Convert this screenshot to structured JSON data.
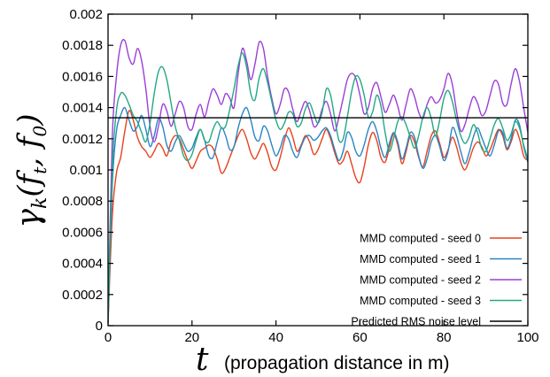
{
  "chart_data": {
    "type": "line",
    "xlabel_symbol": "t",
    "xlabel_text": "(propagation distance in m)",
    "ylabel_symbol": "γ",
    "ylabel_subscript": "k",
    "ylabel_args": "(f",
    "ylabel_arg1_sub": "t",
    "ylabel_sep": ", f",
    "ylabel_arg2_sub": "0",
    "ylabel_close": ")",
    "xlim": [
      0,
      100
    ],
    "ylim": [
      0,
      0.002
    ],
    "xticks": [
      0,
      20,
      40,
      60,
      80,
      100
    ],
    "xtick_labels": [
      "0",
      "20",
      "40",
      "60",
      "80",
      "100"
    ],
    "yticks": [
      0,
      0.0002,
      0.0004,
      0.0006,
      0.0008,
      0.001,
      0.0012,
      0.0014,
      0.0016,
      0.0018,
      0.002
    ],
    "ytick_labels": [
      "0",
      "0.0002",
      "0.0004",
      "0.0006",
      "0.0008",
      "0.001",
      "0.0012",
      "0.0014",
      "0.0016",
      "0.0018",
      "0.002"
    ],
    "legend_position": "lower-right",
    "series": [
      {
        "name": "MMD computed - seed 0",
        "color": "#e8401c",
        "x": [
          0,
          1,
          2,
          3,
          4,
          5,
          6,
          7,
          8,
          9,
          10,
          11,
          12,
          13,
          14,
          15,
          16,
          17,
          18,
          19,
          20,
          21,
          22,
          23,
          24,
          25,
          26,
          27,
          28,
          29,
          30,
          31,
          32,
          33,
          34,
          35,
          36,
          37,
          38,
          39,
          40,
          41,
          42,
          43,
          44,
          45,
          46,
          47,
          48,
          49,
          50,
          51,
          52,
          53,
          54,
          55,
          56,
          57,
          58,
          59,
          60,
          61,
          62,
          63,
          64,
          65,
          66,
          67,
          68,
          69,
          70,
          71,
          72,
          73,
          74,
          75,
          76,
          77,
          78,
          79,
          80,
          81,
          82,
          83,
          84,
          85,
          86,
          87,
          88,
          89,
          90,
          91,
          92,
          93,
          94,
          95,
          96,
          97,
          98,
          99,
          100
        ],
        "y": [
          2e-05,
          0.0007,
          0.00098,
          0.00108,
          0.00125,
          0.00138,
          0.00132,
          0.00121,
          0.00115,
          0.00112,
          0.00108,
          0.00112,
          0.00117,
          0.00114,
          0.00109,
          0.00118,
          0.00122,
          0.0012,
          0.00113,
          0.00106,
          0.00101,
          0.00106,
          0.00112,
          0.00114,
          0.00116,
          0.00114,
          0.00107,
          0.00098,
          0.00101,
          0.00108,
          0.00115,
          0.00122,
          0.00126,
          0.0012,
          0.00111,
          0.00107,
          0.00112,
          0.00117,
          0.00111,
          0.00102,
          0.001,
          0.00108,
          0.00119,
          0.00127,
          0.00121,
          0.00112,
          0.00116,
          0.00122,
          0.00118,
          0.0011,
          0.00113,
          0.0012,
          0.00126,
          0.0012,
          0.00111,
          0.00104,
          0.00106,
          0.00112,
          0.00104,
          0.00095,
          0.00092,
          0.00102,
          0.00116,
          0.00124,
          0.00119,
          0.00108,
          0.00105,
          0.00114,
          0.00123,
          0.00116,
          0.00104,
          0.00112,
          0.00122,
          0.00118,
          0.00108,
          0.00102,
          0.00112,
          0.00122,
          0.00125,
          0.00117,
          0.00108,
          0.00113,
          0.00121,
          0.00115,
          0.00105,
          0.001,
          0.00106,
          0.00114,
          0.00118,
          0.00115,
          0.00109,
          0.00113,
          0.0012,
          0.00126,
          0.00122,
          0.00113,
          0.00118,
          0.00126,
          0.0012,
          0.00109,
          0.00106
        ]
      },
      {
        "name": "MMD computed - seed 1",
        "color": "#2a84c4",
        "x": [
          0,
          1,
          2,
          3,
          4,
          5,
          6,
          7,
          8,
          9,
          10,
          11,
          12,
          13,
          14,
          15,
          16,
          17,
          18,
          19,
          20,
          21,
          22,
          23,
          24,
          25,
          26,
          27,
          28,
          29,
          30,
          31,
          32,
          33,
          34,
          35,
          36,
          37,
          38,
          39,
          40,
          41,
          42,
          43,
          44,
          45,
          46,
          47,
          48,
          49,
          50,
          51,
          52,
          53,
          54,
          55,
          56,
          57,
          58,
          59,
          60,
          61,
          62,
          63,
          64,
          65,
          66,
          67,
          68,
          69,
          70,
          71,
          72,
          73,
          74,
          75,
          76,
          77,
          78,
          79,
          80,
          81,
          82,
          83,
          84,
          85,
          86,
          87,
          88,
          89,
          90,
          91,
          92,
          93,
          94,
          95,
          96,
          97,
          98,
          99,
          100
        ],
        "y": [
          2e-05,
          0.0009,
          0.00125,
          0.00135,
          0.0014,
          0.00132,
          0.00125,
          0.00128,
          0.00135,
          0.00126,
          0.00115,
          0.00122,
          0.00133,
          0.00128,
          0.00116,
          0.00112,
          0.00118,
          0.00122,
          0.00117,
          0.00112,
          0.00114,
          0.00121,
          0.00126,
          0.00119,
          0.00109,
          0.00108,
          0.00118,
          0.00127,
          0.00122,
          0.00113,
          0.00115,
          0.00127,
          0.00136,
          0.0014,
          0.00132,
          0.00121,
          0.00119,
          0.00128,
          0.00125,
          0.00116,
          0.00109,
          0.00114,
          0.00122,
          0.0012,
          0.00112,
          0.00108,
          0.00115,
          0.00121,
          0.00122,
          0.00119,
          0.00121,
          0.00125,
          0.00127,
          0.00122,
          0.00113,
          0.00106,
          0.00112,
          0.00124,
          0.00121,
          0.00112,
          0.00109,
          0.00116,
          0.00126,
          0.00131,
          0.00125,
          0.00114,
          0.00108,
          0.00117,
          0.00124,
          0.00118,
          0.00107,
          0.00114,
          0.00124,
          0.00121,
          0.00109,
          0.00101,
          0.00107,
          0.00118,
          0.00122,
          0.00115,
          0.00106,
          0.00112,
          0.00127,
          0.00122,
          0.00112,
          0.00104,
          0.00111,
          0.00121,
          0.00127,
          0.00121,
          0.00114,
          0.00109,
          0.00116,
          0.00125,
          0.00124,
          0.00114,
          0.0012,
          0.00132,
          0.00129,
          0.00115,
          0.00105
        ]
      },
      {
        "name": "MMD computed - seed 2",
        "color": "#9b3fd6",
        "x": [
          0,
          1,
          2,
          3,
          4,
          5,
          6,
          7,
          8,
          9,
          10,
          11,
          12,
          13,
          14,
          15,
          16,
          17,
          18,
          19,
          20,
          21,
          22,
          23,
          24,
          25,
          26,
          27,
          28,
          29,
          30,
          31,
          32,
          33,
          34,
          35,
          36,
          37,
          38,
          39,
          40,
          41,
          42,
          43,
          44,
          45,
          46,
          47,
          48,
          49,
          50,
          51,
          52,
          53,
          54,
          55,
          56,
          57,
          58,
          59,
          60,
          61,
          62,
          63,
          64,
          65,
          66,
          67,
          68,
          69,
          70,
          71,
          72,
          73,
          74,
          75,
          76,
          77,
          78,
          79,
          80,
          81,
          82,
          83,
          84,
          85,
          86,
          87,
          88,
          89,
          90,
          91,
          92,
          93,
          94,
          95,
          96,
          97,
          98,
          99,
          100
        ],
        "y": [
          2e-05,
          0.0012,
          0.0016,
          0.0018,
          0.00183,
          0.00172,
          0.00168,
          0.00178,
          0.0017,
          0.00152,
          0.00128,
          0.00118,
          0.00128,
          0.00142,
          0.00138,
          0.00128,
          0.00136,
          0.00144,
          0.0014,
          0.00128,
          0.00126,
          0.00136,
          0.00142,
          0.00134,
          0.00144,
          0.00152,
          0.00148,
          0.00142,
          0.00149,
          0.00146,
          0.0014,
          0.00162,
          0.00178,
          0.0017,
          0.00158,
          0.00168,
          0.00182,
          0.00178,
          0.0016,
          0.00146,
          0.00136,
          0.00142,
          0.00152,
          0.0015,
          0.00139,
          0.00131,
          0.00138,
          0.00144,
          0.00138,
          0.00128,
          0.0013,
          0.00139,
          0.00144,
          0.00136,
          0.00125,
          0.00134,
          0.00146,
          0.00158,
          0.00162,
          0.00159,
          0.00148,
          0.00136,
          0.0014,
          0.00152,
          0.00156,
          0.00147,
          0.00137,
          0.00142,
          0.00148,
          0.00141,
          0.00132,
          0.00142,
          0.00152,
          0.00147,
          0.00137,
          0.00133,
          0.00142,
          0.00147,
          0.00143,
          0.00145,
          0.00152,
          0.00162,
          0.00155,
          0.00138,
          0.00125,
          0.00129,
          0.00139,
          0.00147,
          0.00143,
          0.00135,
          0.00138,
          0.00148,
          0.00157,
          0.00155,
          0.00143,
          0.00142,
          0.00155,
          0.00165,
          0.00157,
          0.0014,
          0.00124
        ]
      },
      {
        "name": "MMD computed - seed 3",
        "color": "#22a884",
        "x": [
          0,
          1,
          2,
          3,
          4,
          5,
          6,
          7,
          8,
          9,
          10,
          11,
          12,
          13,
          14,
          15,
          16,
          17,
          18,
          19,
          20,
          21,
          22,
          23,
          24,
          25,
          26,
          27,
          28,
          29,
          30,
          31,
          32,
          33,
          34,
          35,
          36,
          37,
          38,
          39,
          40,
          41,
          42,
          43,
          44,
          45,
          46,
          47,
          48,
          49,
          50,
          51,
          52,
          53,
          54,
          55,
          56,
          57,
          58,
          59,
          60,
          61,
          62,
          63,
          64,
          65,
          66,
          67,
          68,
          69,
          70,
          71,
          72,
          73,
          74,
          75,
          76,
          77,
          78,
          79,
          80,
          81,
          82,
          83,
          84,
          85,
          86,
          87,
          88,
          89,
          90,
          91,
          92,
          93,
          94,
          95,
          96,
          97,
          98,
          99,
          100
        ],
        "y": [
          2e-05,
          0.001,
          0.00138,
          0.00149,
          0.00148,
          0.00142,
          0.00135,
          0.00131,
          0.00124,
          0.00118,
          0.0013,
          0.00149,
          0.00163,
          0.00166,
          0.00158,
          0.00143,
          0.00128,
          0.00119,
          0.00109,
          0.00106,
          0.0011,
          0.00119,
          0.00126,
          0.00119,
          0.00118,
          0.00126,
          0.00131,
          0.00127,
          0.00128,
          0.00139,
          0.00152,
          0.00167,
          0.00175,
          0.00166,
          0.00149,
          0.00145,
          0.00159,
          0.00165,
          0.00156,
          0.00144,
          0.00132,
          0.00126,
          0.0013,
          0.00137,
          0.00136,
          0.00128,
          0.0013,
          0.00139,
          0.00143,
          0.00136,
          0.0013,
          0.00137,
          0.00152,
          0.00148,
          0.00133,
          0.00119,
          0.0012,
          0.00134,
          0.0015,
          0.0016,
          0.00158,
          0.00148,
          0.00134,
          0.00137,
          0.00148,
          0.00141,
          0.00124,
          0.00112,
          0.0012,
          0.00131,
          0.00134,
          0.00129,
          0.00121,
          0.00114,
          0.00122,
          0.00134,
          0.0014,
          0.00133,
          0.00122,
          0.00132,
          0.00146,
          0.00151,
          0.00144,
          0.00132,
          0.00122,
          0.00117,
          0.00121,
          0.00129,
          0.00124,
          0.00114,
          0.00112,
          0.0012,
          0.00129,
          0.00133,
          0.00127,
          0.00119,
          0.00123,
          0.00131,
          0.00127,
          0.00116,
          0.00107
        ]
      }
    ],
    "reference_line": {
      "name": "Predicted RMS noise level",
      "color": "#000000",
      "y": 0.001335
    }
  }
}
